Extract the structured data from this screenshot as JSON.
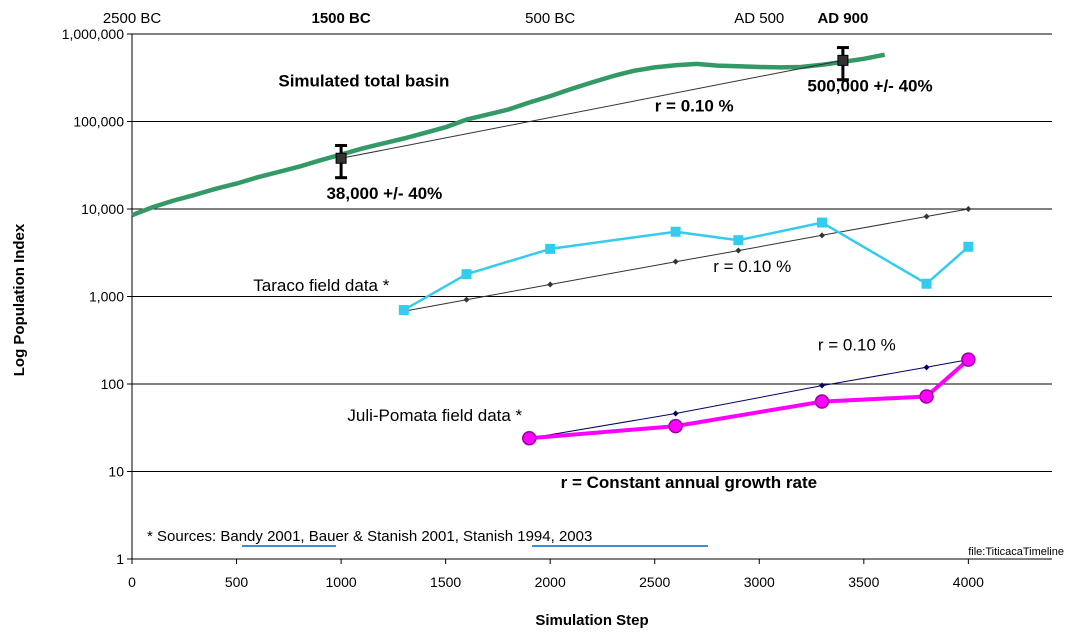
{
  "chart_data": {
    "type": "line",
    "xlabel": "Simulation Step",
    "ylabel": "Log Population Index",
    "yscale": "log",
    "xlim": [
      0,
      4400
    ],
    "ylim": [
      1,
      1000000
    ],
    "x_ticks": [
      0,
      500,
      1000,
      1500,
      2000,
      2500,
      3000,
      3500,
      4000
    ],
    "y_ticks": [
      {
        "value": 1,
        "label": "1"
      },
      {
        "value": 10,
        "label": "10"
      },
      {
        "value": 100,
        "label": "100"
      },
      {
        "value": 1000,
        "label": "1,000"
      },
      {
        "value": 10000,
        "label": "10,000"
      },
      {
        "value": 100000,
        "label": "100,000"
      },
      {
        "value": 1000000,
        "label": "1,000,000"
      }
    ],
    "grid": "horizontal",
    "top_axis_labels": [
      {
        "x": 0,
        "label": "2500 BC",
        "bold": false
      },
      {
        "x": 1000,
        "label": "1500 BC",
        "bold": true
      },
      {
        "x": 2000,
        "label": "500 BC",
        "bold": false
      },
      {
        "x": 3000,
        "label": "AD 500",
        "bold": false
      },
      {
        "x": 3400,
        "label": "AD 900",
        "bold": true
      }
    ],
    "series": [
      {
        "key": "simulated",
        "color": "#339966",
        "x": [
          0,
          100,
          200,
          300,
          400,
          500,
          600,
          700,
          800,
          900,
          1000,
          1100,
          1200,
          1300,
          1400,
          1500,
          1600,
          1700,
          1800,
          1900,
          2000,
          2100,
          2200,
          2300,
          2400,
          2500,
          2600,
          2700,
          2800,
          2900,
          3000,
          3100,
          3200,
          3300,
          3400,
          3500,
          3600
        ],
        "y": [
          8500,
          10500,
          12500,
          14500,
          17000,
          19500,
          23000,
          26500,
          30500,
          36000,
          42000,
          49000,
          56000,
          64000,
          74000,
          86000,
          105000,
          120000,
          137000,
          165000,
          195000,
          235000,
          280000,
          330000,
          380000,
          415000,
          440000,
          455000,
          435000,
          428000,
          420000,
          415000,
          420000,
          445000,
          480000,
          520000,
          580000
        ]
      },
      {
        "key": "taraco",
        "color": "#33ccee",
        "marker": "square",
        "x": [
          1300,
          1600,
          2000,
          2600,
          2900,
          3300,
          3800,
          4000
        ],
        "y": [
          700,
          1800,
          3500,
          5500,
          4400,
          7000,
          1400,
          3700
        ]
      },
      {
        "key": "juli",
        "color": "#ff00ff",
        "marker": "circle",
        "x": [
          1900,
          2600,
          3300,
          3800,
          4000
        ],
        "y": [
          24,
          33,
          63,
          72,
          190
        ]
      },
      {
        "key": "taraco_growth",
        "color": "#333333",
        "marker": "diamond",
        "x": [
          1300,
          1600,
          2000,
          2600,
          2900,
          3300,
          3800,
          4000
        ],
        "y": [
          680,
          920,
          1370,
          2500,
          3350,
          5000,
          8200,
          10000
        ]
      },
      {
        "key": "juli_growth",
        "color": "#000066",
        "marker": "diamond",
        "x": [
          1900,
          2600,
          3300,
          3800,
          4000
        ],
        "y": [
          24,
          46,
          96,
          155,
          190
        ]
      },
      {
        "key": "total_growth",
        "color": "#333333",
        "x": [
          1000,
          3400
        ],
        "y": [
          38000,
          500000
        ]
      }
    ],
    "error_bars": [
      {
        "x": 1000,
        "y": 38000,
        "low": 22800,
        "high": 53200
      },
      {
        "x": 3400,
        "y": 500000,
        "low": 300000,
        "high": 700000
      }
    ],
    "annotations": [
      {
        "text": "Simulated total basin",
        "x": 700,
        "y": 250000,
        "bold": true,
        "size": 17
      },
      {
        "text": "r = 0.10 %",
        "x": 2500,
        "y": 130000,
        "bold": true,
        "size": 17
      },
      {
        "text": "500,000 +/- 40%",
        "x": 3230,
        "y": 220000,
        "bold": true,
        "size": 17
      },
      {
        "text": "38,000 +/- 40%",
        "x": 930,
        "y": 13000,
        "bold": true,
        "size": 17
      },
      {
        "text": "Taraco field data *",
        "x": 580,
        "y": 1150,
        "bold": false,
        "size": 17
      },
      {
        "text": "r = 0.10 %",
        "x": 2780,
        "y": 1900,
        "bold": false,
        "size": 17
      },
      {
        "text": "r = 0.10 %",
        "x": 3280,
        "y": 240,
        "bold": false,
        "size": 17
      },
      {
        "text": "Juli-Pomata field data *",
        "x": 1030,
        "y": 38,
        "bold": false,
        "size": 17
      },
      {
        "text": "r = Constant annual growth rate",
        "x": 2050,
        "y": 6.5,
        "bold": true,
        "size": 17
      }
    ],
    "sources": "* Sources: Bandy 2001, Bauer & Stanish 2001, Stanish 1994, 2003",
    "file_label": "file:TiticacaTimeline"
  }
}
